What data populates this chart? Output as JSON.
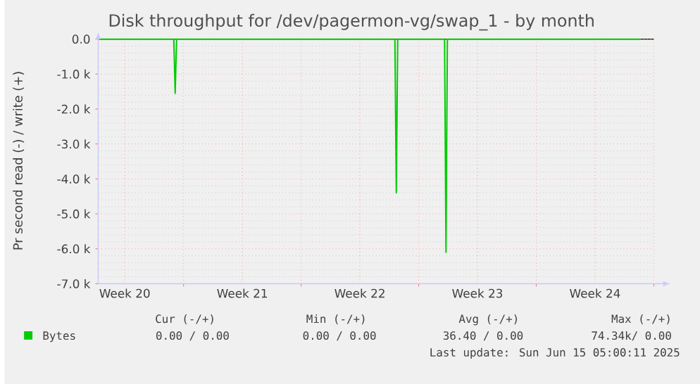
{
  "chart_data": {
    "type": "line",
    "title": "Disk throughput for /dev/pagermon-vg/swap_1 - by month",
    "ylabel": "Pr second read (-) / write (+)",
    "xlim": [
      "2025-05-13T22:00",
      "2025-06-16T00:00"
    ],
    "xticks": [
      {
        "value": "2025-05-15T12:00",
        "label": "Week 20"
      },
      {
        "value": "2025-05-19T00:00",
        "label": null
      },
      {
        "value": "2025-05-22T12:00",
        "label": "Week 21"
      },
      {
        "value": "2025-05-26T00:00",
        "label": null
      },
      {
        "value": "2025-05-29T12:00",
        "label": "Week 22"
      },
      {
        "value": "2025-06-02T00:00",
        "label": null
      },
      {
        "value": "2025-06-05T12:00",
        "label": "Week 23"
      },
      {
        "value": "2025-06-09T00:00",
        "label": null
      },
      {
        "value": "2025-06-12T12:00",
        "label": "Week 24"
      },
      {
        "value": "2025-06-16T00:00",
        "label": null
      }
    ],
    "ylim": [
      -7000,
      0
    ],
    "yticks": [
      {
        "value": 0,
        "label": "0.0"
      },
      {
        "value": -1000,
        "label": "-1.0 k"
      },
      {
        "value": -2000,
        "label": "-2.0 k"
      },
      {
        "value": -3000,
        "label": "-3.0 k"
      },
      {
        "value": -4000,
        "label": "-4.0 k"
      },
      {
        "value": -5000,
        "label": "-5.0 k"
      },
      {
        "value": -6000,
        "label": "-6.0 k"
      },
      {
        "value": -7000,
        "label": "-7.0 k"
      }
    ],
    "grid": true,
    "legend": "bottom left",
    "marker": "none",
    "line_style": "solid",
    "series": [
      {
        "name": "Bytes",
        "color": "#00cc00",
        "x": [
          "2025-05-13T22:00",
          "2025-05-18T10:00",
          "2025-05-18T12:00",
          "2025-05-18T14:00",
          "2025-05-31T14:00",
          "2025-05-31T16:00",
          "2025-05-31T18:00",
          "2025-06-03T13:00",
          "2025-06-03T15:00",
          "2025-06-03T17:00",
          "2025-06-15T05:00"
        ],
        "values": [
          0,
          0,
          -1550,
          0,
          0,
          -4400,
          0,
          0,
          -6100,
          0,
          0
        ]
      }
    ],
    "annotations": [
      "Cur (-/+)",
      "Min (-/+)",
      "Avg (-/+)",
      "Max (-/+)",
      "0.00 /  0.00",
      "0.00 /  0.00",
      "36.40 /  0.00",
      "74.34k/  0.00",
      "Last update: Sun Jun 15 05:00:11 2025"
    ]
  }
}
